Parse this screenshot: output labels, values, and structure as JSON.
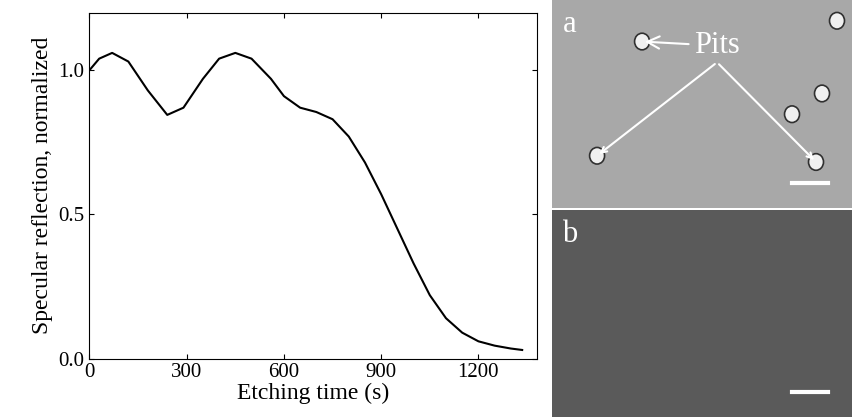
{
  "chart_data": {
    "type": "line",
    "x_label": "Etching time (s)",
    "y_label": "Specular reflection, normalized",
    "x": [
      0,
      30,
      70,
      120,
      180,
      240,
      290,
      350,
      400,
      450,
      500,
      560,
      600,
      650,
      700,
      750,
      800,
      850,
      900,
      950,
      1000,
      1050,
      1100,
      1150,
      1200,
      1250,
      1300,
      1335
    ],
    "values": [
      1.0,
      1.04,
      1.06,
      1.03,
      0.93,
      0.845,
      0.87,
      0.97,
      1.04,
      1.06,
      1.04,
      0.97,
      0.91,
      0.87,
      0.855,
      0.83,
      0.77,
      0.68,
      0.57,
      0.45,
      0.33,
      0.22,
      0.14,
      0.09,
      0.06,
      0.045,
      0.035,
      0.03
    ],
    "color": "#000000",
    "xlim": [
      0,
      1380
    ],
    "xticks": [
      0,
      300,
      600,
      900,
      1200
    ],
    "ylim": [
      0,
      1.2
    ],
    "yticks": [
      {
        "value": 0,
        "label": "0.0"
      },
      0.5,
      1.0
    ],
    "grid": false
  },
  "images": [
    {
      "label": "a",
      "annotation": "Pits"
    },
    {
      "label": "b"
    }
  ]
}
